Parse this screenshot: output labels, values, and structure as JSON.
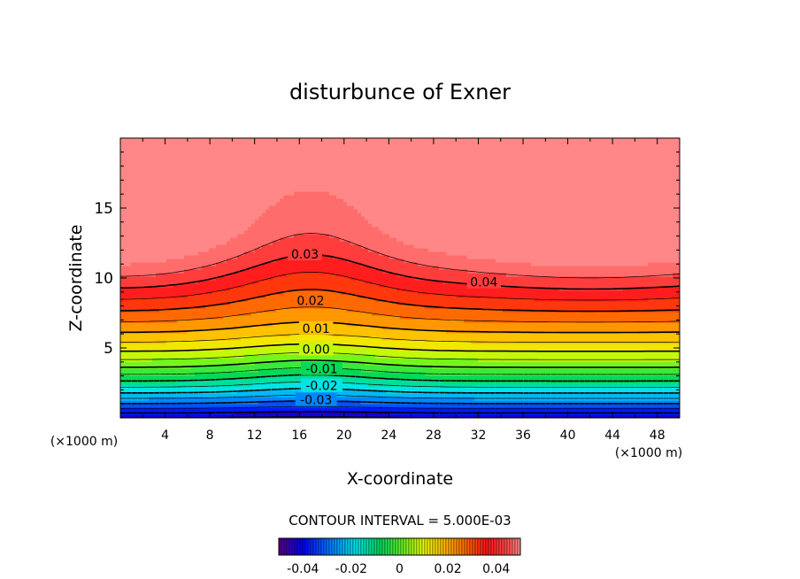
{
  "chart_data": {
    "type": "heatmap",
    "title": "disturbunce of Exner",
    "xlabel": "X-coordinate",
    "ylabel": "Z-coordinate",
    "x_unit": "(×1000 m)",
    "y_unit": "(×1000 m)",
    "xlim": [
      0,
      50
    ],
    "ylim": [
      0,
      20
    ],
    "x_ticks": [
      4,
      8,
      12,
      16,
      20,
      24,
      28,
      32,
      36,
      40,
      44,
      48
    ],
    "y_ticks": [
      5,
      10,
      15
    ],
    "contour_interval_text": "CONTOUR INTERVAL = 5.000E-03",
    "contour_interval": 0.005,
    "field_range": [
      -0.045,
      0.045
    ],
    "negative_contours_dashed": true,
    "contour_labels": [
      {
        "text": "0.03",
        "x": 16.5,
        "z": 11.7
      },
      {
        "text": "0.04",
        "x": 32.5,
        "z": 9.7
      },
      {
        "text": "0.02",
        "x": 17.0,
        "z": 8.4
      },
      {
        "text": "0.01",
        "x": 17.5,
        "z": 6.4
      },
      {
        "text": "0.00",
        "x": 17.5,
        "z": 4.9
      },
      {
        "text": "-0.01",
        "x": 18.0,
        "z": 3.5
      },
      {
        "text": "-0.02",
        "x": 18.0,
        "z": 2.3
      },
      {
        "text": "-0.03",
        "x": 17.5,
        "z": 1.3
      }
    ],
    "colorbar": {
      "min": -0.05,
      "max": 0.05,
      "tick_values": [
        -0.04,
        -0.02,
        0,
        0.02,
        0.04
      ],
      "tick_labels": [
        "-0.04",
        "-0.02",
        "0",
        "0.02",
        "0.04"
      ]
    }
  }
}
